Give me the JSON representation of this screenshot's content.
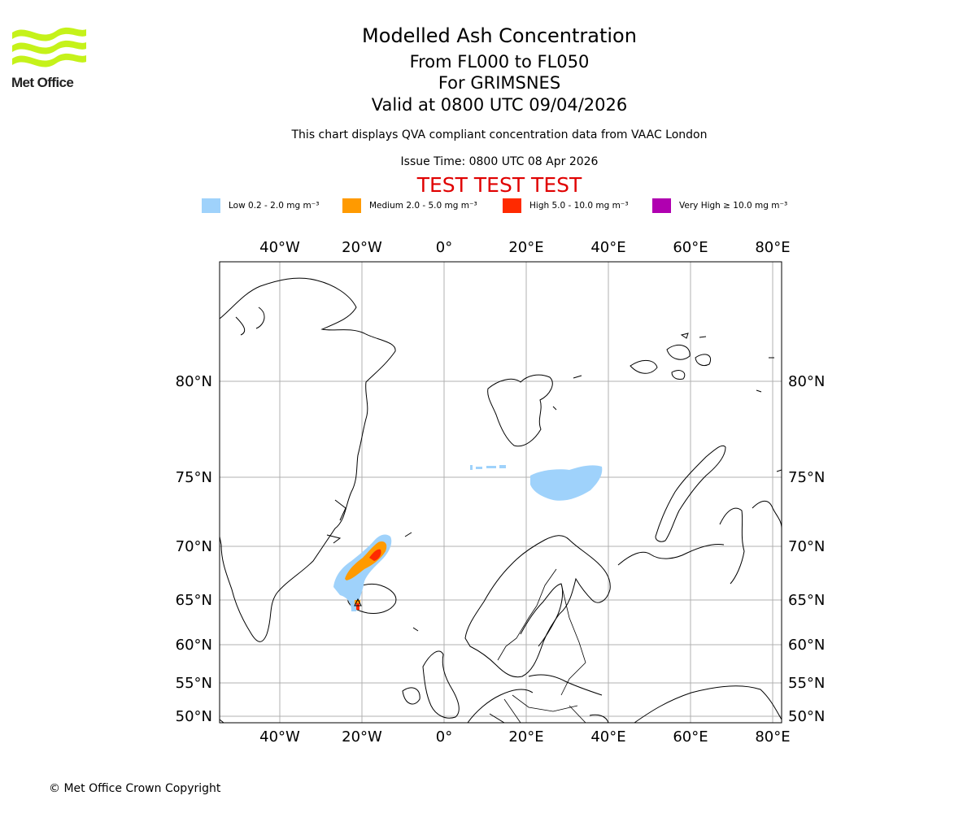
{
  "header": {
    "logo_name": "Met Office",
    "title": "Modelled Ash Concentration",
    "flight_levels": "From FL000 to FL050",
    "volcano": "For GRIMSNES",
    "valid_time": "Valid at 0800 UTC 09/04/2026",
    "compliance_note": "This chart displays QVA compliant concentration data from VAAC London",
    "issue_time": "Issue Time: 0800 UTC 08 Apr 2026",
    "test_banner": "TEST TEST TEST"
  },
  "legend": [
    {
      "label": "Low 0.2 - 2.0 mg m⁻³",
      "color": "#9fd2fb"
    },
    {
      "label": "Medium 2.0 - 5.0 mg m⁻³",
      "color": "#ff9a00"
    },
    {
      "label": "High 5.0 - 10.0 mg m⁻³",
      "color": "#ff2a00"
    },
    {
      "label": "Very High ≥ 10.0 mg m⁻³",
      "color": "#b000b0"
    }
  ],
  "map": {
    "lon_labels": [
      "40°W",
      "20°W",
      "0°",
      "20°E",
      "40°E",
      "60°E",
      "80°E"
    ],
    "lat_labels": [
      "80°N",
      "75°N",
      "70°N",
      "65°N",
      "60°N",
      "55°N",
      "50°N"
    ],
    "grid": true,
    "regions": [
      "Greenland",
      "Iceland",
      "Svalbard",
      "Scandinavia",
      "British Isles",
      "Novaya Zemlya",
      "Franz Josef Land"
    ]
  },
  "ash_areas": [
    {
      "level": "low",
      "location": "Iceland to north-east"
    },
    {
      "level": "medium",
      "location": "north of Iceland"
    },
    {
      "level": "high",
      "location": "north of Iceland"
    },
    {
      "level": "low",
      "location": "south of Svalbard"
    }
  ],
  "footer": {
    "copyright": "© Met Office Crown Copyright"
  }
}
